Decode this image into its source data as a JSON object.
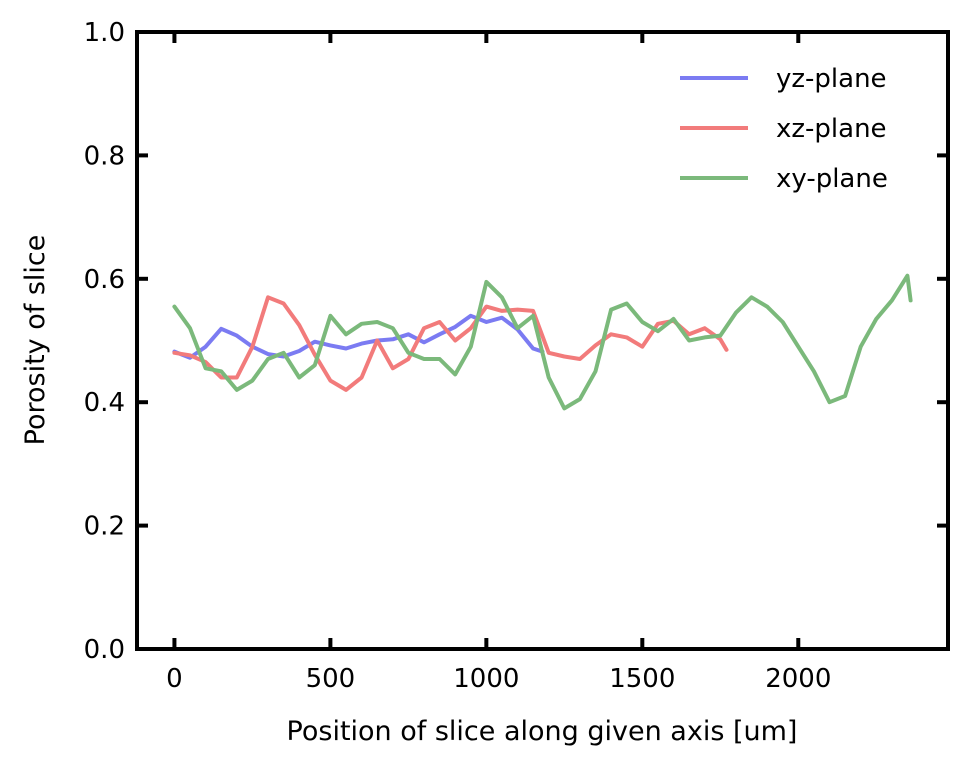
{
  "chart_data": {
    "type": "line",
    "title": "",
    "xlabel": "Position of slice along given axis [um]",
    "ylabel": "Porosity of slice",
    "xlim": [
      -120,
      2480
    ],
    "ylim": [
      0.0,
      1.0
    ],
    "xticks": [
      0,
      500,
      1000,
      1500,
      2000
    ],
    "yticks": [
      0.0,
      0.2,
      0.4,
      0.6,
      0.8,
      1.0
    ],
    "xtick_labels": [
      "0",
      "500",
      "1000",
      "1500",
      "2000"
    ],
    "ytick_labels": [
      "0.0",
      "0.2",
      "0.4",
      "0.6",
      "0.8",
      "1.0"
    ],
    "grid": false,
    "legend_position": "top-right",
    "series": [
      {
        "name": "yz-plane",
        "color": "#7b7bf2",
        "x": [
          0,
          50,
          100,
          150,
          200,
          250,
          300,
          350,
          400,
          450,
          500,
          550,
          600,
          650,
          700,
          750,
          800,
          850,
          900,
          950,
          1000,
          1050,
          1100,
          1150,
          1180
        ],
        "y": [
          0.482,
          0.472,
          0.49,
          0.519,
          0.508,
          0.49,
          0.478,
          0.474,
          0.483,
          0.498,
          0.492,
          0.487,
          0.495,
          0.5,
          0.502,
          0.51,
          0.497,
          0.51,
          0.522,
          0.54,
          0.53,
          0.537,
          0.518,
          0.487,
          0.482
        ]
      },
      {
        "name": "xz-plane",
        "color": "#f27b7b",
        "x": [
          0,
          50,
          100,
          150,
          200,
          250,
          300,
          350,
          400,
          450,
          500,
          550,
          600,
          650,
          700,
          750,
          800,
          850,
          900,
          950,
          1000,
          1050,
          1100,
          1150,
          1200,
          1250,
          1300,
          1350,
          1400,
          1450,
          1500,
          1550,
          1600,
          1650,
          1700,
          1750,
          1770
        ],
        "y": [
          0.48,
          0.476,
          0.465,
          0.44,
          0.44,
          0.49,
          0.57,
          0.56,
          0.525,
          0.477,
          0.435,
          0.42,
          0.44,
          0.5,
          0.455,
          0.47,
          0.52,
          0.53,
          0.5,
          0.52,
          0.555,
          0.548,
          0.55,
          0.548,
          0.48,
          0.474,
          0.47,
          0.492,
          0.51,
          0.505,
          0.49,
          0.527,
          0.532,
          0.51,
          0.52,
          0.502,
          0.485
        ]
      },
      {
        "name": "xy-plane",
        "color": "#7bb97b",
        "x": [
          0,
          50,
          100,
          150,
          200,
          250,
          300,
          350,
          400,
          450,
          500,
          550,
          600,
          650,
          700,
          750,
          800,
          850,
          900,
          950,
          1000,
          1050,
          1100,
          1150,
          1200,
          1250,
          1300,
          1350,
          1400,
          1450,
          1500,
          1550,
          1600,
          1650,
          1700,
          1750,
          1800,
          1850,
          1900,
          1950,
          2000,
          2050,
          2100,
          2150,
          2200,
          2250,
          2300,
          2350,
          2360
        ],
        "y": [
          0.555,
          0.52,
          0.455,
          0.45,
          0.42,
          0.435,
          0.47,
          0.48,
          0.44,
          0.46,
          0.54,
          0.51,
          0.527,
          0.53,
          0.52,
          0.48,
          0.47,
          0.47,
          0.445,
          0.49,
          0.595,
          0.57,
          0.52,
          0.54,
          0.44,
          0.39,
          0.405,
          0.45,
          0.55,
          0.56,
          0.53,
          0.515,
          0.535,
          0.5,
          0.505,
          0.508,
          0.545,
          0.57,
          0.555,
          0.53,
          0.49,
          0.45,
          0.4,
          0.41,
          0.49,
          0.535,
          0.565,
          0.605,
          0.565
        ]
      }
    ]
  }
}
